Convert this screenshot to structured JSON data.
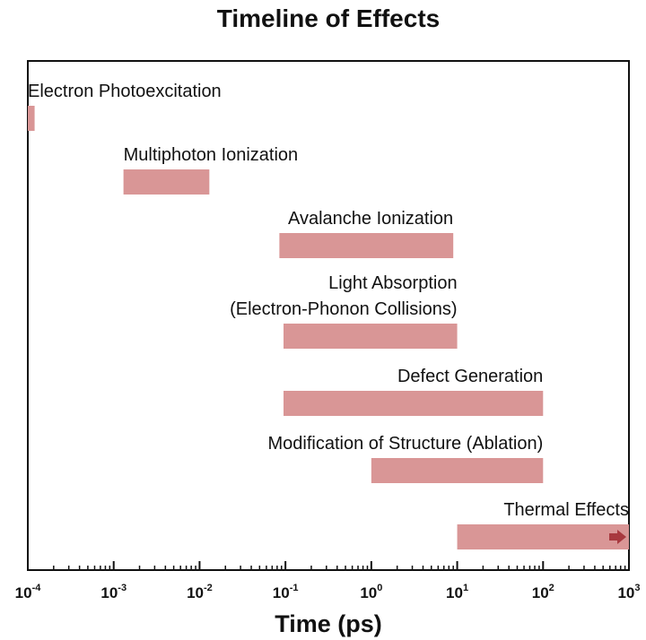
{
  "chart_data": {
    "type": "bar",
    "orientation": "horizontal",
    "title": "Timeline of Effects",
    "xlabel": "Time (ps)",
    "ylabel": "",
    "x_scale": "log",
    "xlim": [
      0.0001,
      1000
    ],
    "x_ticks": [
      {
        "base": "10",
        "exp": "-4"
      },
      {
        "base": "10",
        "exp": "-3"
      },
      {
        "base": "10",
        "exp": "-2"
      },
      {
        "base": "10",
        "exp": "-1"
      },
      {
        "base": "10",
        "exp": "0"
      },
      {
        "base": "10",
        "exp": "1"
      },
      {
        "base": "10",
        "exp": "2"
      },
      {
        "base": "10",
        "exp": "3"
      }
    ],
    "bar_color": "#d99696",
    "arrow_color": "#a8393f",
    "bars": [
      {
        "label_lines": [
          "Electron Photoexcitation"
        ],
        "start": 0.0001,
        "end": 0.00012,
        "label_align": "start"
      },
      {
        "label_lines": [
          "Multiphoton Ionization"
        ],
        "start": 0.0013,
        "end": 0.013,
        "label_align": "start"
      },
      {
        "label_lines": [
          "Avalanche Ionization"
        ],
        "start": 0.085,
        "end": 9,
        "label_align": "end"
      },
      {
        "label_lines": [
          "Light Absorption",
          "(Electron-Phonon Collisions)"
        ],
        "start": 0.095,
        "end": 10,
        "label_align": "end"
      },
      {
        "label_lines": [
          "Defect Generation"
        ],
        "start": 0.095,
        "end": 100,
        "label_align": "end"
      },
      {
        "label_lines": [
          "Modification of Structure (Ablation)"
        ],
        "start": 1,
        "end": 100,
        "label_align": "end"
      },
      {
        "label_lines": [
          "Thermal Effects"
        ],
        "start": 10,
        "end": 1000,
        "label_align": "end",
        "continues": true
      }
    ]
  }
}
